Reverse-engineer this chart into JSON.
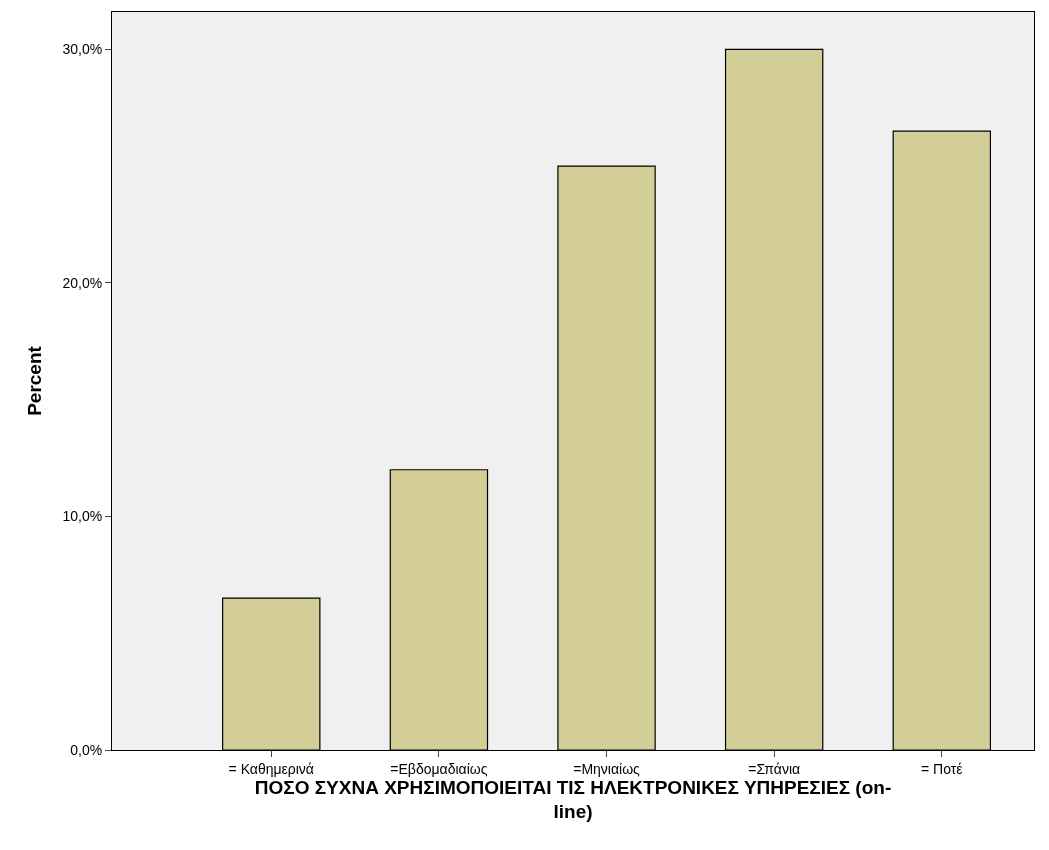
{
  "chart_data": {
    "type": "bar",
    "xlabel": "ΠΟΣΟ ΣΥΧΝΑ ΧΡΗΣΙΜΟΠΟΙΕΙΤΑΙ ΤΙΣ ΗΛΕΚΤΡΟΝΙΚΕΣ ΥΠΗΡΕΣΙΕΣ (on-line)",
    "ylabel": "Percent",
    "categories": [
      "= Καθημερινά",
      "=Εβδομαδιαίως",
      "=Μηνιαίως",
      "=Σπάνια",
      "= Ποτέ"
    ],
    "values": [
      6.5,
      12.0,
      25.0,
      30.0,
      26.5
    ],
    "color": "#d3ce97",
    "ylim": [
      0,
      31.6
    ],
    "yticks": [
      {
        "value": 0,
        "label": "0,0%"
      },
      {
        "value": 10,
        "label": "10,0%"
      },
      {
        "value": 20,
        "label": "20,0%"
      },
      {
        "value": 30,
        "label": "30,0%"
      }
    ],
    "grid": false,
    "legend": false
  }
}
